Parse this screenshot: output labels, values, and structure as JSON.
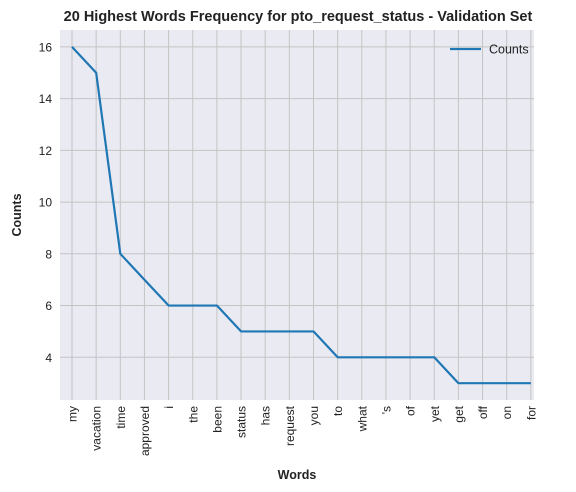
{
  "chart_data": {
    "type": "line",
    "title": "20 Highest Words Frequency for pto_request_status - Validation Set",
    "xlabel": "Words",
    "ylabel": "Counts",
    "categories": [
      "my",
      "vacation",
      "time",
      "approved",
      "i",
      "the",
      "been",
      "status",
      "has",
      "request",
      "you",
      "to",
      "what",
      "'s",
      "of",
      "yet",
      "get",
      "off",
      "on",
      "for"
    ],
    "series": [
      {
        "name": "Counts",
        "values": [
          16,
          15,
          8,
          7,
          6,
          6,
          6,
          5,
          5,
          5,
          5,
          4,
          4,
          4,
          4,
          4,
          3,
          3,
          3,
          3
        ]
      }
    ],
    "ylim": [
      2.35,
      16.65
    ],
    "yticks": [
      4,
      6,
      8,
      10,
      12,
      14,
      16
    ],
    "grid": true,
    "legend": "top-right",
    "colors": {
      "line": "#1f77b4",
      "background": "#eaeaf2",
      "grid": "#c4c4c4"
    }
  }
}
